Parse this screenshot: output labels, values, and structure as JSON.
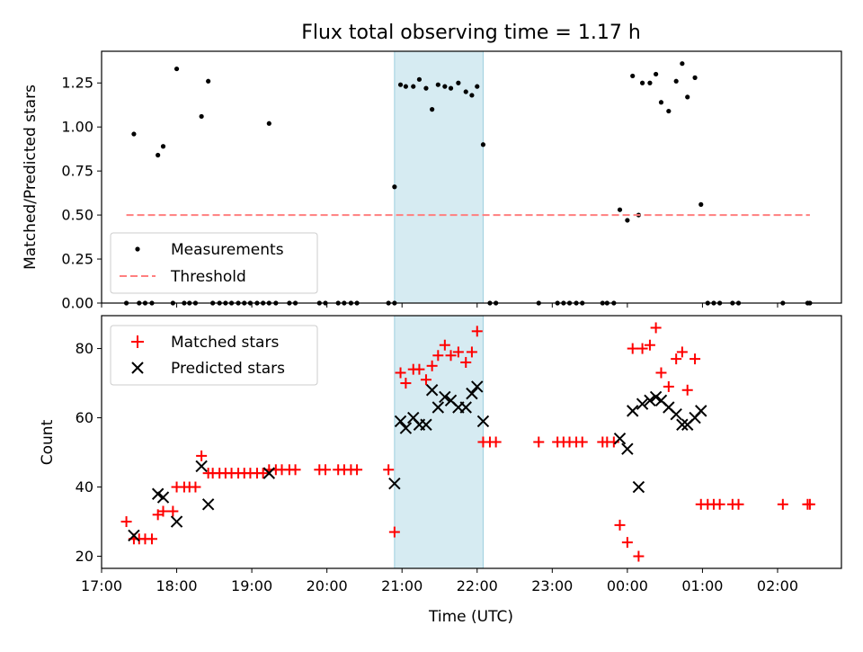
{
  "chart_data": [
    {
      "type": "scatter",
      "title": "Flux total observing time = 1.17 h",
      "xlabel": "",
      "ylabel": "Matched/Predicted stars",
      "xlim": [
        17.0,
        26.85
      ],
      "ylim": [
        0,
        1.43
      ],
      "yticks": [
        0.0,
        0.25,
        0.5,
        0.75,
        1.0,
        1.25
      ],
      "ytick_labels": [
        "0.00",
        "0.25",
        "0.50",
        "0.75",
        "1.00",
        "1.25"
      ],
      "highlight_span": [
        20.9,
        22.08
      ],
      "highlight_color": "#add8e6",
      "legend_position": "lower-left",
      "series": [
        {
          "name": "Measurements",
          "style": "dot",
          "color": "#000000",
          "points": [
            [
              17.43,
              0.96
            ],
            [
              17.75,
              0.84
            ],
            [
              17.82,
              0.89
            ],
            [
              18.0,
              1.33
            ],
            [
              18.33,
              1.06
            ],
            [
              18.42,
              1.26
            ],
            [
              19.23,
              1.02
            ],
            [
              20.9,
              0.66
            ],
            [
              20.98,
              1.24
            ],
            [
              21.05,
              1.23
            ],
            [
              21.15,
              1.23
            ],
            [
              21.23,
              1.27
            ],
            [
              21.32,
              1.22
            ],
            [
              21.4,
              1.1
            ],
            [
              21.48,
              1.24
            ],
            [
              21.57,
              1.23
            ],
            [
              21.65,
              1.22
            ],
            [
              21.75,
              1.25
            ],
            [
              21.85,
              1.2
            ],
            [
              21.93,
              1.18
            ],
            [
              22.0,
              1.23
            ],
            [
              22.08,
              0.9
            ],
            [
              23.9,
              0.53
            ],
            [
              24.0,
              0.47
            ],
            [
              24.07,
              1.29
            ],
            [
              24.15,
              0.5
            ],
            [
              24.2,
              1.25
            ],
            [
              24.3,
              1.25
            ],
            [
              24.38,
              1.3
            ],
            [
              24.45,
              1.14
            ],
            [
              24.55,
              1.09
            ],
            [
              24.65,
              1.26
            ],
            [
              24.73,
              1.36
            ],
            [
              24.8,
              1.17
            ],
            [
              24.9,
              1.28
            ],
            [
              24.98,
              0.56
            ],
            [
              17.33,
              0
            ],
            [
              17.5,
              0
            ],
            [
              17.58,
              0
            ],
            [
              17.67,
              0
            ],
            [
              17.95,
              0
            ],
            [
              18.1,
              0
            ],
            [
              18.17,
              0
            ],
            [
              18.25,
              0
            ],
            [
              18.48,
              0
            ],
            [
              18.57,
              0
            ],
            [
              18.65,
              0
            ],
            [
              18.73,
              0
            ],
            [
              18.82,
              0
            ],
            [
              18.9,
              0
            ],
            [
              18.98,
              0
            ],
            [
              19.07,
              0
            ],
            [
              19.15,
              0
            ],
            [
              19.23,
              0
            ],
            [
              19.32,
              0
            ],
            [
              19.5,
              0
            ],
            [
              19.58,
              0
            ],
            [
              19.9,
              0
            ],
            [
              19.98,
              0
            ],
            [
              20.15,
              0
            ],
            [
              20.23,
              0
            ],
            [
              20.32,
              0
            ],
            [
              20.4,
              0
            ],
            [
              20.82,
              0
            ],
            [
              20.9,
              0
            ],
            [
              22.17,
              0
            ],
            [
              22.25,
              0
            ],
            [
              22.82,
              0
            ],
            [
              23.07,
              0
            ],
            [
              23.15,
              0
            ],
            [
              23.23,
              0
            ],
            [
              23.32,
              0
            ],
            [
              23.4,
              0
            ],
            [
              23.67,
              0
            ],
            [
              23.73,
              0
            ],
            [
              23.82,
              0
            ],
            [
              25.07,
              0
            ],
            [
              25.15,
              0
            ],
            [
              25.23,
              0
            ],
            [
              25.4,
              0
            ],
            [
              25.48,
              0
            ],
            [
              26.07,
              0
            ],
            [
              26.4,
              0
            ],
            [
              26.43,
              0
            ]
          ]
        },
        {
          "name": "Threshold",
          "style": "dashed-line",
          "color": "#ff7f7f",
          "x": [
            17.33,
            26.43
          ],
          "y": [
            0.5,
            0.5
          ]
        }
      ]
    },
    {
      "type": "scatter",
      "title": "",
      "xlabel": "Time (UTC)",
      "ylabel": "Count",
      "xlim": [
        17.0,
        26.85
      ],
      "ylim": [
        16.5,
        89.5
      ],
      "yticks": [
        20,
        40,
        60,
        80
      ],
      "ytick_labels": [
        "20",
        "40",
        "60",
        "80"
      ],
      "xticks": [
        17,
        18,
        19,
        20,
        21,
        22,
        23,
        24,
        25,
        26
      ],
      "xtick_labels": [
        "17:00",
        "18:00",
        "19:00",
        "20:00",
        "21:00",
        "22:00",
        "23:00",
        "00:00",
        "01:00",
        "02:00"
      ],
      "highlight_span": [
        20.9,
        22.08
      ],
      "highlight_color": "#add8e6",
      "legend_position": "top-left",
      "series": [
        {
          "name": "Matched stars",
          "style": "plus",
          "color": "#ff0000",
          "points": [
            [
              17.33,
              30
            ],
            [
              17.43,
              25
            ],
            [
              17.5,
              25
            ],
            [
              17.58,
              25
            ],
            [
              17.67,
              25
            ],
            [
              17.75,
              32
            ],
            [
              17.82,
              33
            ],
            [
              17.95,
              33
            ],
            [
              18.0,
              40
            ],
            [
              18.1,
              40
            ],
            [
              18.17,
              40
            ],
            [
              18.25,
              40
            ],
            [
              18.33,
              49
            ],
            [
              18.42,
              44
            ],
            [
              18.48,
              44
            ],
            [
              18.57,
              44
            ],
            [
              18.65,
              44
            ],
            [
              18.73,
              44
            ],
            [
              18.82,
              44
            ],
            [
              18.9,
              44
            ],
            [
              18.98,
              44
            ],
            [
              19.07,
              44
            ],
            [
              19.15,
              44
            ],
            [
              19.23,
              45
            ],
            [
              19.32,
              45
            ],
            [
              19.4,
              45
            ],
            [
              19.5,
              45
            ],
            [
              19.58,
              45
            ],
            [
              19.9,
              45
            ],
            [
              19.98,
              45
            ],
            [
              20.15,
              45
            ],
            [
              20.23,
              45
            ],
            [
              20.32,
              45
            ],
            [
              20.4,
              45
            ],
            [
              20.82,
              45
            ],
            [
              20.9,
              27
            ],
            [
              20.98,
              73
            ],
            [
              21.05,
              70
            ],
            [
              21.15,
              74
            ],
            [
              21.23,
              74
            ],
            [
              21.32,
              71
            ],
            [
              21.4,
              75
            ],
            [
              21.48,
              78
            ],
            [
              21.57,
              81
            ],
            [
              21.65,
              78
            ],
            [
              21.75,
              79
            ],
            [
              21.85,
              76
            ],
            [
              21.93,
              79
            ],
            [
              22.0,
              85
            ],
            [
              22.08,
              53
            ],
            [
              22.17,
              53
            ],
            [
              22.25,
              53
            ],
            [
              22.82,
              53
            ],
            [
              23.07,
              53
            ],
            [
              23.15,
              53
            ],
            [
              23.23,
              53
            ],
            [
              23.32,
              53
            ],
            [
              23.4,
              53
            ],
            [
              23.67,
              53
            ],
            [
              23.73,
              53
            ],
            [
              23.82,
              53
            ],
            [
              23.9,
              29
            ],
            [
              24.0,
              24
            ],
            [
              24.07,
              80
            ],
            [
              24.15,
              20
            ],
            [
              24.2,
              80
            ],
            [
              24.3,
              81
            ],
            [
              24.38,
              86
            ],
            [
              24.45,
              73
            ],
            [
              24.55,
              69
            ],
            [
              24.65,
              77
            ],
            [
              24.73,
              79
            ],
            [
              24.8,
              68
            ],
            [
              24.9,
              77
            ],
            [
              24.98,
              35
            ],
            [
              25.07,
              35
            ],
            [
              25.15,
              35
            ],
            [
              25.23,
              35
            ],
            [
              25.4,
              35
            ],
            [
              25.48,
              35
            ],
            [
              26.07,
              35
            ],
            [
              26.4,
              35
            ],
            [
              26.43,
              35
            ]
          ]
        },
        {
          "name": "Predicted stars",
          "style": "x",
          "color": "#000000",
          "points": [
            [
              17.43,
              26
            ],
            [
              17.75,
              38
            ],
            [
              17.82,
              37
            ],
            [
              18.0,
              30
            ],
            [
              18.33,
              46
            ],
            [
              18.42,
              35
            ],
            [
              19.23,
              44
            ],
            [
              20.9,
              41
            ],
            [
              20.98,
              59
            ],
            [
              21.05,
              57
            ],
            [
              21.15,
              60
            ],
            [
              21.23,
              58
            ],
            [
              21.32,
              58
            ],
            [
              21.4,
              68
            ],
            [
              21.48,
              63
            ],
            [
              21.57,
              66
            ],
            [
              21.65,
              65
            ],
            [
              21.75,
              63
            ],
            [
              21.85,
              63
            ],
            [
              21.93,
              67
            ],
            [
              22.0,
              69
            ],
            [
              22.08,
              59
            ],
            [
              23.9,
              54
            ],
            [
              24.0,
              51
            ],
            [
              24.07,
              62
            ],
            [
              24.15,
              40
            ],
            [
              24.2,
              64
            ],
            [
              24.3,
              65
            ],
            [
              24.38,
              66
            ],
            [
              24.45,
              65
            ],
            [
              24.55,
              63
            ],
            [
              24.65,
              61
            ],
            [
              24.73,
              58
            ],
            [
              24.8,
              58
            ],
            [
              24.9,
              60
            ],
            [
              24.98,
              62
            ]
          ]
        }
      ]
    }
  ]
}
